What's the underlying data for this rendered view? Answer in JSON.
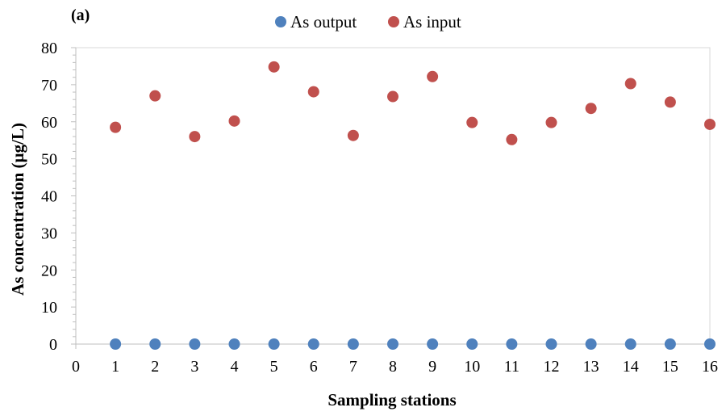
{
  "chart_data": {
    "type": "scatter",
    "panel_label": "(a)",
    "xlabel": "Sampling stations",
    "ylabel": "As concentration (µg/L)",
    "xlim": [
      0,
      16
    ],
    "ylim": [
      0,
      80
    ],
    "x_ticks": [
      "0",
      "1",
      "2",
      "3",
      "4",
      "5",
      "6",
      "7",
      "8",
      "9",
      "10",
      "11",
      "12",
      "13",
      "14",
      "15",
      "16"
    ],
    "y_ticks": [
      "0",
      "10",
      "20",
      "30",
      "40",
      "50",
      "60",
      "70",
      "80"
    ],
    "grid": false,
    "legend_position": "top-center",
    "series": [
      {
        "name": "As output",
        "color": "#4f81bd",
        "x": [
          1,
          2,
          3,
          4,
          5,
          6,
          7,
          8,
          9,
          10,
          11,
          12,
          13,
          14,
          15,
          16
        ],
        "y": [
          0,
          0,
          0,
          0,
          0,
          0,
          0,
          0,
          0,
          0,
          0,
          0,
          0,
          0,
          0,
          0
        ]
      },
      {
        "name": "As input",
        "color": "#c0504d",
        "x": [
          1,
          2,
          3,
          4,
          5,
          6,
          7,
          8,
          9,
          10,
          11,
          12,
          13,
          14,
          15,
          16
        ],
        "y": [
          58.5,
          67,
          56,
          60.2,
          74.8,
          68.1,
          56.3,
          66.8,
          72.2,
          59.8,
          55.2,
          59.8,
          63.6,
          70.3,
          65.3,
          59.3
        ]
      }
    ]
  }
}
